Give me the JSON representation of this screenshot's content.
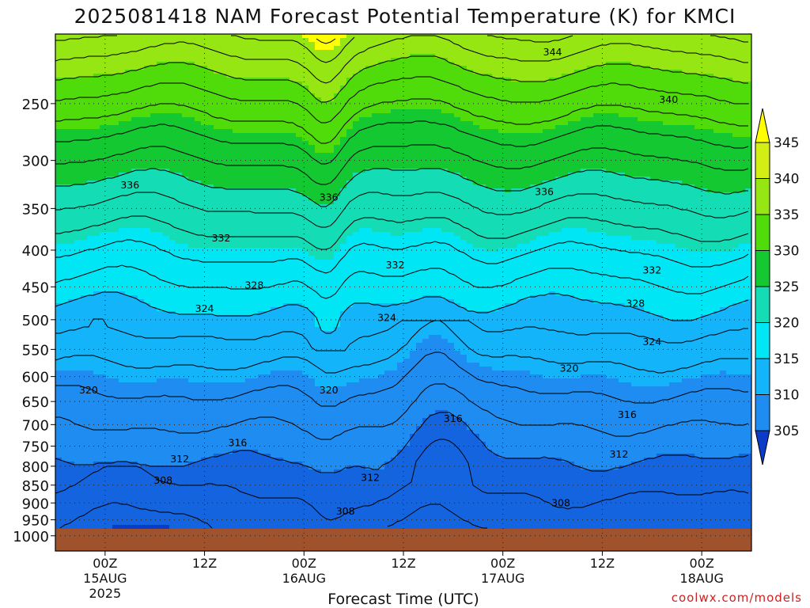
{
  "chart_data": {
    "type": "heatmap",
    "title": "2025081418 NAM Forecast Potential Temperature (K) for KMCI",
    "xlabel": "Forecast Time (UTC)",
    "ylabel": "",
    "x_ticks": [
      {
        "label": "00Z",
        "date": "15AUG",
        "year": "2025",
        "hour": 6
      },
      {
        "label": "12Z",
        "date": "",
        "year": "",
        "hour": 18
      },
      {
        "label": "00Z",
        "date": "16AUG",
        "year": "",
        "hour": 30
      },
      {
        "label": "12Z",
        "date": "",
        "year": "",
        "hour": 42
      },
      {
        "label": "00Z",
        "date": "17AUG",
        "year": "",
        "hour": 54
      },
      {
        "label": "12Z",
        "date": "",
        "year": "",
        "hour": 66
      },
      {
        "label": "00Z",
        "date": "18AUG",
        "year": "",
        "hour": 78
      }
    ],
    "x_range_hours": [
      0,
      84
    ],
    "y_ticks": [
      250,
      300,
      350,
      400,
      450,
      500,
      550,
      600,
      650,
      700,
      750,
      800,
      850,
      900,
      950,
      1000
    ],
    "y_scale": "log-pressure",
    "y_range": [
      200,
      1050
    ],
    "grid": true,
    "colorbar": {
      "levels": [
        305,
        310,
        315,
        320,
        325,
        330,
        335,
        340,
        345
      ],
      "colors": [
        "#0a3cc8",
        "#1464e0",
        "#1e8cf0",
        "#14b4fa",
        "#00e6f5",
        "#14dcb4",
        "#14c832",
        "#50dc0a",
        "#96e614",
        "#d2ee14",
        "#ffff00"
      ],
      "placement": "right"
    },
    "contour_levels": [
      300,
      302,
      304,
      306,
      308,
      310,
      312,
      314,
      316,
      318,
      320,
      322,
      324,
      326,
      328,
      330,
      332,
      334,
      336,
      338,
      340,
      342,
      344,
      346
    ],
    "contour_labels": [
      {
        "value": 344,
        "hour": 60,
        "p": 212
      },
      {
        "value": 340,
        "hour": 74,
        "p": 247
      },
      {
        "value": 336,
        "hour": 9,
        "p": 325
      },
      {
        "value": 336,
        "hour": 33,
        "p": 338
      },
      {
        "value": 336,
        "hour": 59,
        "p": 332
      },
      {
        "value": 332,
        "hour": 20,
        "p": 385
      },
      {
        "value": 332,
        "hour": 41,
        "p": 420
      },
      {
        "value": 332,
        "hour": 72,
        "p": 427
      },
      {
        "value": 328,
        "hour": 24,
        "p": 448
      },
      {
        "value": 328,
        "hour": 70,
        "p": 475
      },
      {
        "value": 324,
        "hour": 18,
        "p": 483
      },
      {
        "value": 324,
        "hour": 40,
        "p": 497
      },
      {
        "value": 324,
        "hour": 72,
        "p": 537
      },
      {
        "value": 320,
        "hour": 4,
        "p": 627
      },
      {
        "value": 320,
        "hour": 33,
        "p": 627
      },
      {
        "value": 320,
        "hour": 62,
        "p": 585
      },
      {
        "value": 316,
        "hour": 48,
        "p": 687
      },
      {
        "value": 316,
        "hour": 22,
        "p": 742
      },
      {
        "value": 316,
        "hour": 69,
        "p": 678
      },
      {
        "value": 312,
        "hour": 15,
        "p": 782
      },
      {
        "value": 312,
        "hour": 38,
        "p": 830
      },
      {
        "value": 312,
        "hour": 68,
        "p": 770
      },
      {
        "value": 308,
        "hour": 13,
        "p": 838
      },
      {
        "value": 308,
        "hour": 35,
        "p": 925
      },
      {
        "value": 308,
        "hour": 61,
        "p": 900
      }
    ]
  },
  "credit": "coolwx.com/models"
}
